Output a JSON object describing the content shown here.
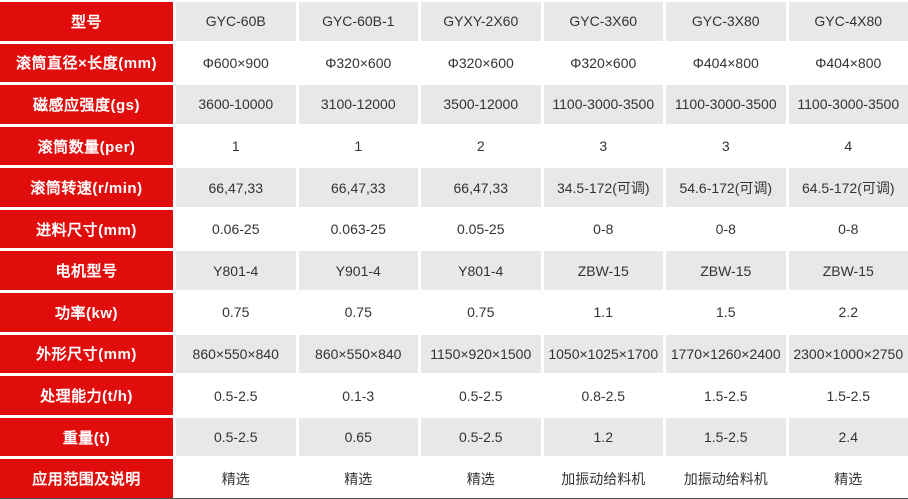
{
  "table": {
    "rows": [
      {
        "label": "型号",
        "values": [
          "GYC-60B",
          "GYC-60B-1",
          "GYXY-2X60",
          "GYC-3X60",
          "GYC-3X80",
          "GYC-4X80"
        ]
      },
      {
        "label": "滚筒直径×长度(mm)",
        "values": [
          "Φ600×900",
          "Φ320×600",
          "Φ320×600",
          "Φ320×600",
          "Φ404×800",
          "Φ404×800"
        ]
      },
      {
        "label": "磁感应强度(gs)",
        "values": [
          "3600-10000",
          "3100-12000",
          "3500-12000",
          "1100-3000-3500",
          "1100-3000-3500",
          "1100-3000-3500"
        ]
      },
      {
        "label": "滚筒数量(per)",
        "values": [
          "1",
          "1",
          "2",
          "3",
          "3",
          "4"
        ]
      },
      {
        "label": "滚筒转速(r/min)",
        "values": [
          "66,47,33",
          "66,47,33",
          "66,47,33",
          "34.5-172(可调)",
          "54.6-172(可调)",
          "64.5-172(可调)"
        ]
      },
      {
        "label": "进料尺寸(mm)",
        "values": [
          "0.06-25",
          "0.063-25",
          "0.05-25",
          "0-8",
          "0-8",
          "0-8"
        ]
      },
      {
        "label": "电机型号",
        "values": [
          "Y801-4",
          "Y901-4",
          "Y801-4",
          "ZBW-15",
          "ZBW-15",
          "ZBW-15"
        ]
      },
      {
        "label": "功率(kw)",
        "values": [
          "0.75",
          "0.75",
          "0.75",
          "1.1",
          "1.5",
          "2.2"
        ]
      },
      {
        "label": "外形尺寸(mm)",
        "values": [
          "860×550×840",
          "860×550×840",
          "1150×920×1500",
          "1050×1025×1700",
          "1770×1260×2400",
          "2300×1000×2750"
        ]
      },
      {
        "label": "处理能力(t/h)",
        "values": [
          "0.5-2.5",
          "0.1-3",
          "0.5-2.5",
          "0.8-2.5",
          "1.5-2.5",
          "1.5-2.5"
        ]
      },
      {
        "label": "重量(t)",
        "values": [
          "0.5-2.5",
          "0.65",
          "0.5-2.5",
          "1.2",
          "1.5-2.5",
          "2.4"
        ]
      },
      {
        "label": "应用范围及说明",
        "values": [
          "精选",
          "精选",
          "精选",
          "加振动给料机",
          "加振动给料机",
          "精选"
        ]
      }
    ]
  },
  "colors": {
    "red": "#e10d0d",
    "label_text": "#ffffff",
    "row_alt": "#e8e8e8",
    "row_base": "#ffffff",
    "text": "#333333",
    "bottom_border": "#4d4d4d"
  }
}
